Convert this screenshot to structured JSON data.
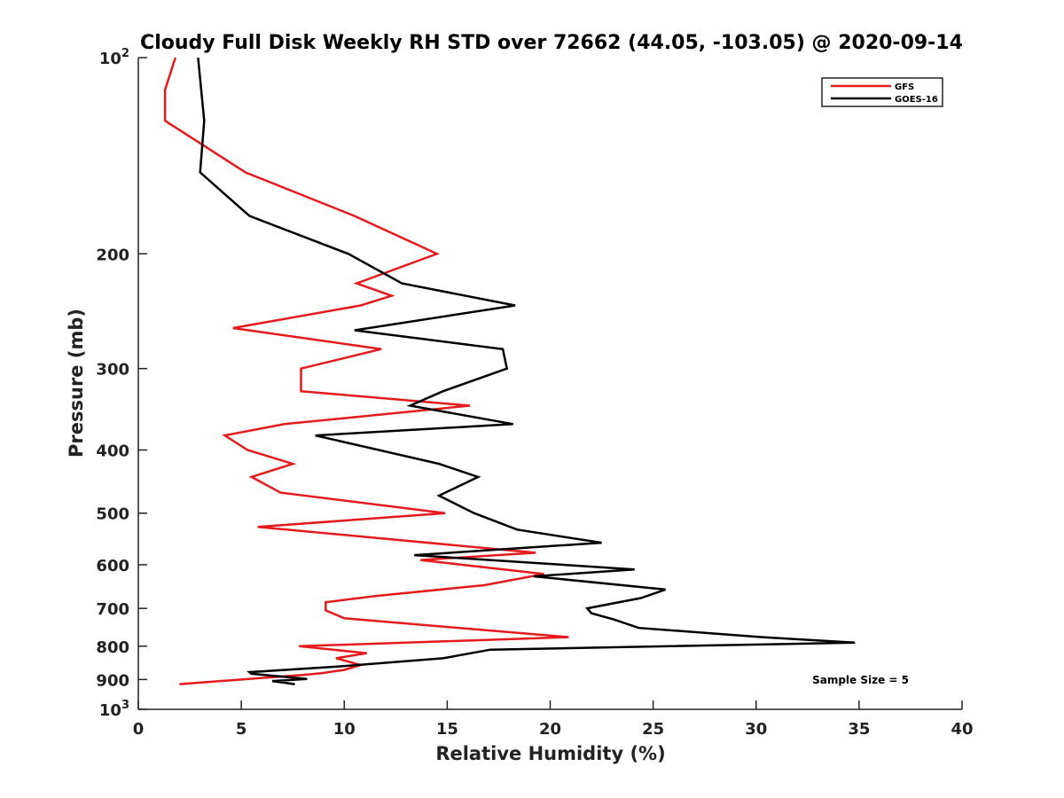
{
  "chart_data": {
    "type": "line",
    "title": "Cloudy Full Disk Weekly RH STD over 72662 (44.05, -103.05) @ 2020-09-14",
    "xlabel": "Relative Humidity (%)",
    "ylabel": "Pressure (mb)",
    "xlim": [
      0,
      40
    ],
    "ylim": [
      100,
      1000
    ],
    "y_scale": "log",
    "y_reversed": true,
    "grid": false,
    "legend_position": "top-right",
    "x_ticks": [
      "0",
      "5",
      "10",
      "15",
      "20",
      "25",
      "30",
      "35",
      "40"
    ],
    "y_ticks": [
      {
        "value": 100,
        "base": "10",
        "exp": "2"
      },
      {
        "value": 200,
        "label": "200"
      },
      {
        "value": 300,
        "label": "300"
      },
      {
        "value": 400,
        "label": "400"
      },
      {
        "value": 500,
        "label": "500"
      },
      {
        "value": 600,
        "label": "600"
      },
      {
        "value": 700,
        "label": "700"
      },
      {
        "value": 800,
        "label": "800"
      },
      {
        "value": 900,
        "label": "900"
      },
      {
        "value": 1000,
        "base": "10",
        "exp": "3"
      }
    ],
    "annotation": "Sample Size = 5",
    "series": [
      {
        "name": "GFS",
        "color": "#e41a1c",
        "points": [
          [
            1.8,
            100
          ],
          [
            1.3,
            112
          ],
          [
            1.3,
            125
          ],
          [
            5.2,
            150
          ],
          [
            10.5,
            175
          ],
          [
            14.5,
            200
          ],
          [
            10.6,
            222
          ],
          [
            12.3,
            232
          ],
          [
            10.8,
            240
          ],
          [
            4.6,
            260
          ],
          [
            11.8,
            280
          ],
          [
            7.9,
            300
          ],
          [
            7.9,
            325
          ],
          [
            16.1,
            342
          ],
          [
            7.1,
            365
          ],
          [
            4.2,
            380
          ],
          [
            5.3,
            400
          ],
          [
            7.5,
            420
          ],
          [
            5.5,
            440
          ],
          [
            6.9,
            465
          ],
          [
            14.9,
            500
          ],
          [
            5.8,
            525
          ],
          [
            19.3,
            575
          ],
          [
            13.7,
            590
          ],
          [
            19.7,
            620
          ],
          [
            16.8,
            645
          ],
          [
            11.5,
            670
          ],
          [
            9.1,
            685
          ],
          [
            9.1,
            705
          ],
          [
            10.0,
            725
          ],
          [
            20.9,
            775
          ],
          [
            7.8,
            800
          ],
          [
            11.1,
            820
          ],
          [
            9.6,
            835
          ],
          [
            10.8,
            855
          ],
          [
            10.0,
            870
          ],
          [
            8.9,
            880
          ],
          [
            8.1,
            885
          ],
          [
            2.0,
            915
          ]
        ]
      },
      {
        "name": "GOES-16",
        "color": "#000000",
        "points": [
          [
            2.9,
            100
          ],
          [
            3.2,
            125
          ],
          [
            3.0,
            150
          ],
          [
            5.4,
            175
          ],
          [
            10.2,
            200
          ],
          [
            12.8,
            222
          ],
          [
            18.3,
            240
          ],
          [
            10.5,
            262
          ],
          [
            17.7,
            280
          ],
          [
            17.9,
            300
          ],
          [
            14.8,
            325
          ],
          [
            13.2,
            342
          ],
          [
            18.2,
            365
          ],
          [
            8.6,
            380
          ],
          [
            14.6,
            420
          ],
          [
            16.5,
            440
          ],
          [
            14.6,
            470
          ],
          [
            16.3,
            500
          ],
          [
            18.4,
            530
          ],
          [
            22.5,
            555
          ],
          [
            13.4,
            580
          ],
          [
            24.1,
            610
          ],
          [
            19.2,
            625
          ],
          [
            25.6,
            655
          ],
          [
            24.4,
            675
          ],
          [
            21.8,
            700
          ],
          [
            22.0,
            712
          ],
          [
            23.1,
            728
          ],
          [
            24.3,
            750
          ],
          [
            30.3,
            775
          ],
          [
            34.8,
            790
          ],
          [
            17.1,
            810
          ],
          [
            14.8,
            835
          ],
          [
            9.6,
            860
          ],
          [
            5.4,
            877
          ],
          [
            5.5,
            882
          ],
          [
            8.2,
            898
          ],
          [
            6.5,
            905
          ],
          [
            7.6,
            915
          ]
        ]
      }
    ]
  }
}
